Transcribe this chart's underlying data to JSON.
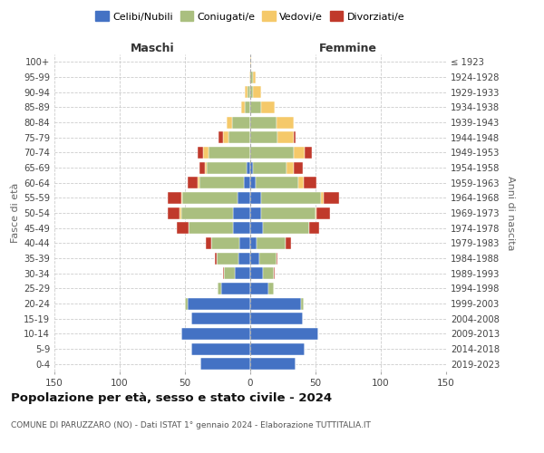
{
  "age_groups": [
    "0-4",
    "5-9",
    "10-14",
    "15-19",
    "20-24",
    "25-29",
    "30-34",
    "35-39",
    "40-44",
    "45-49",
    "50-54",
    "55-59",
    "60-64",
    "65-69",
    "70-74",
    "75-79",
    "80-84",
    "85-89",
    "90-94",
    "95-99",
    "100+"
  ],
  "birth_years": [
    "2019-2023",
    "2014-2018",
    "2009-2013",
    "2004-2008",
    "1999-2003",
    "1994-1998",
    "1989-1993",
    "1984-1988",
    "1979-1983",
    "1974-1978",
    "1969-1973",
    "1964-1968",
    "1959-1963",
    "1954-1958",
    "1949-1953",
    "1944-1948",
    "1939-1943",
    "1934-1938",
    "1929-1933",
    "1924-1928",
    "≤ 1923"
  ],
  "maschi": {
    "celibi": [
      38,
      45,
      53,
      45,
      48,
      22,
      12,
      9,
      8,
      13,
      13,
      10,
      5,
      3,
      0,
      0,
      0,
      0,
      0,
      0,
      0
    ],
    "coniugati": [
      0,
      0,
      0,
      0,
      2,
      3,
      8,
      17,
      22,
      34,
      40,
      42,
      34,
      30,
      32,
      17,
      14,
      4,
      2,
      0,
      0
    ],
    "vedovi": [
      0,
      0,
      0,
      0,
      0,
      0,
      0,
      0,
      0,
      0,
      1,
      1,
      1,
      2,
      4,
      4,
      4,
      3,
      2,
      1,
      0
    ],
    "divorziati": [
      0,
      0,
      0,
      0,
      0,
      0,
      1,
      1,
      4,
      9,
      9,
      10,
      8,
      4,
      4,
      3,
      0,
      0,
      0,
      0,
      0
    ]
  },
  "femmine": {
    "nubili": [
      35,
      42,
      52,
      40,
      39,
      14,
      10,
      7,
      5,
      10,
      8,
      8,
      4,
      2,
      0,
      0,
      0,
      0,
      0,
      0,
      0
    ],
    "coniugate": [
      0,
      0,
      0,
      0,
      2,
      4,
      8,
      13,
      22,
      35,
      42,
      46,
      33,
      26,
      33,
      21,
      20,
      8,
      2,
      2,
      0
    ],
    "vedove": [
      0,
      0,
      0,
      0,
      0,
      0,
      0,
      0,
      0,
      0,
      1,
      2,
      4,
      5,
      9,
      12,
      13,
      11,
      6,
      2,
      1
    ],
    "divorziate": [
      0,
      0,
      0,
      0,
      0,
      0,
      1,
      1,
      4,
      8,
      10,
      12,
      10,
      7,
      5,
      2,
      0,
      0,
      0,
      0,
      0
    ]
  },
  "colors": {
    "celibi": "#4472C4",
    "coniugati": "#AABF7F",
    "vedovi": "#F5C96A",
    "divorziati": "#C0392B"
  },
  "xlim": 150,
  "title": "Popolazione per età, sesso e stato civile - 2024",
  "subtitle": "COMUNE DI PARUZZARO (NO) - Dati ISTAT 1° gennaio 2024 - Elaborazione TUTTITALIA.IT",
  "xlabel_left": "Maschi",
  "xlabel_right": "Femmine",
  "ylabel_left": "Fasce di età",
  "ylabel_right": "Anni di nascita",
  "legend_labels": [
    "Celibi/Nubili",
    "Coniugati/e",
    "Vedovi/e",
    "Divorziati/e"
  ],
  "bg_color": "#ffffff",
  "grid_color": "#cccccc"
}
